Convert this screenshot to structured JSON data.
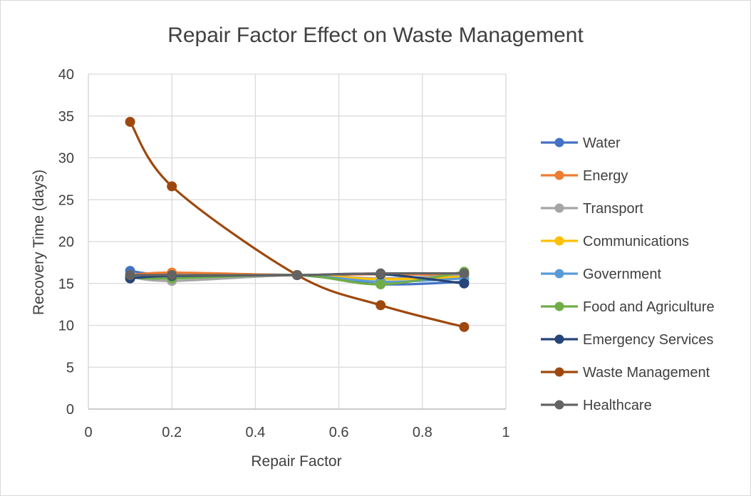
{
  "chart_data": {
    "type": "line",
    "title": "Repair Factor Effect on Waste Management",
    "xlabel": "Repair Factor",
    "ylabel": "Recovery Time (days)",
    "xlim": [
      0,
      1
    ],
    "ylim": [
      0,
      40
    ],
    "x_ticks": [
      0,
      0.2,
      0.4,
      0.6,
      0.8,
      1
    ],
    "x_tick_labels": [
      "0",
      "0.2",
      "0.4",
      "0.6",
      "0.8",
      "1"
    ],
    "y_ticks": [
      0,
      5,
      10,
      15,
      20,
      25,
      30,
      35,
      40
    ],
    "y_tick_labels": [
      "0",
      "5",
      "10",
      "15",
      "20",
      "25",
      "30",
      "35",
      "40"
    ],
    "grid": true,
    "legend_position": "right",
    "x": [
      0.1,
      0.2,
      0.5,
      0.7,
      0.9
    ],
    "series": [
      {
        "name": "Water",
        "color": "#4472C4",
        "values": [
          16.5,
          16.0,
          16.0,
          14.9,
          15.2
        ]
      },
      {
        "name": "Energy",
        "color": "#ED7D31",
        "values": [
          16.0,
          16.3,
          16.0,
          16.1,
          16.0
        ]
      },
      {
        "name": "Transport",
        "color": "#A5A5A5",
        "values": [
          15.8,
          15.3,
          16.0,
          15.6,
          16.0
        ]
      },
      {
        "name": "Communications",
        "color": "#FFC000",
        "values": [
          15.9,
          15.8,
          16.0,
          15.5,
          15.8
        ]
      },
      {
        "name": "Government",
        "color": "#5B9BD5",
        "values": [
          15.9,
          15.8,
          16.0,
          15.2,
          15.6
        ]
      },
      {
        "name": "Food and Agriculture",
        "color": "#70AD47",
        "values": [
          15.7,
          15.6,
          16.0,
          14.9,
          16.4
        ]
      },
      {
        "name": "Emergency Services",
        "color": "#264478",
        "values": [
          15.6,
          15.9,
          16.0,
          16.1,
          15.0
        ]
      },
      {
        "name": "Waste Management",
        "color": "#9E480E",
        "values": [
          34.3,
          26.6,
          16.0,
          12.4,
          9.8
        ]
      },
      {
        "name": "Healthcare",
        "color": "#636363",
        "values": [
          16.0,
          16.0,
          16.0,
          16.2,
          16.2
        ]
      }
    ]
  }
}
